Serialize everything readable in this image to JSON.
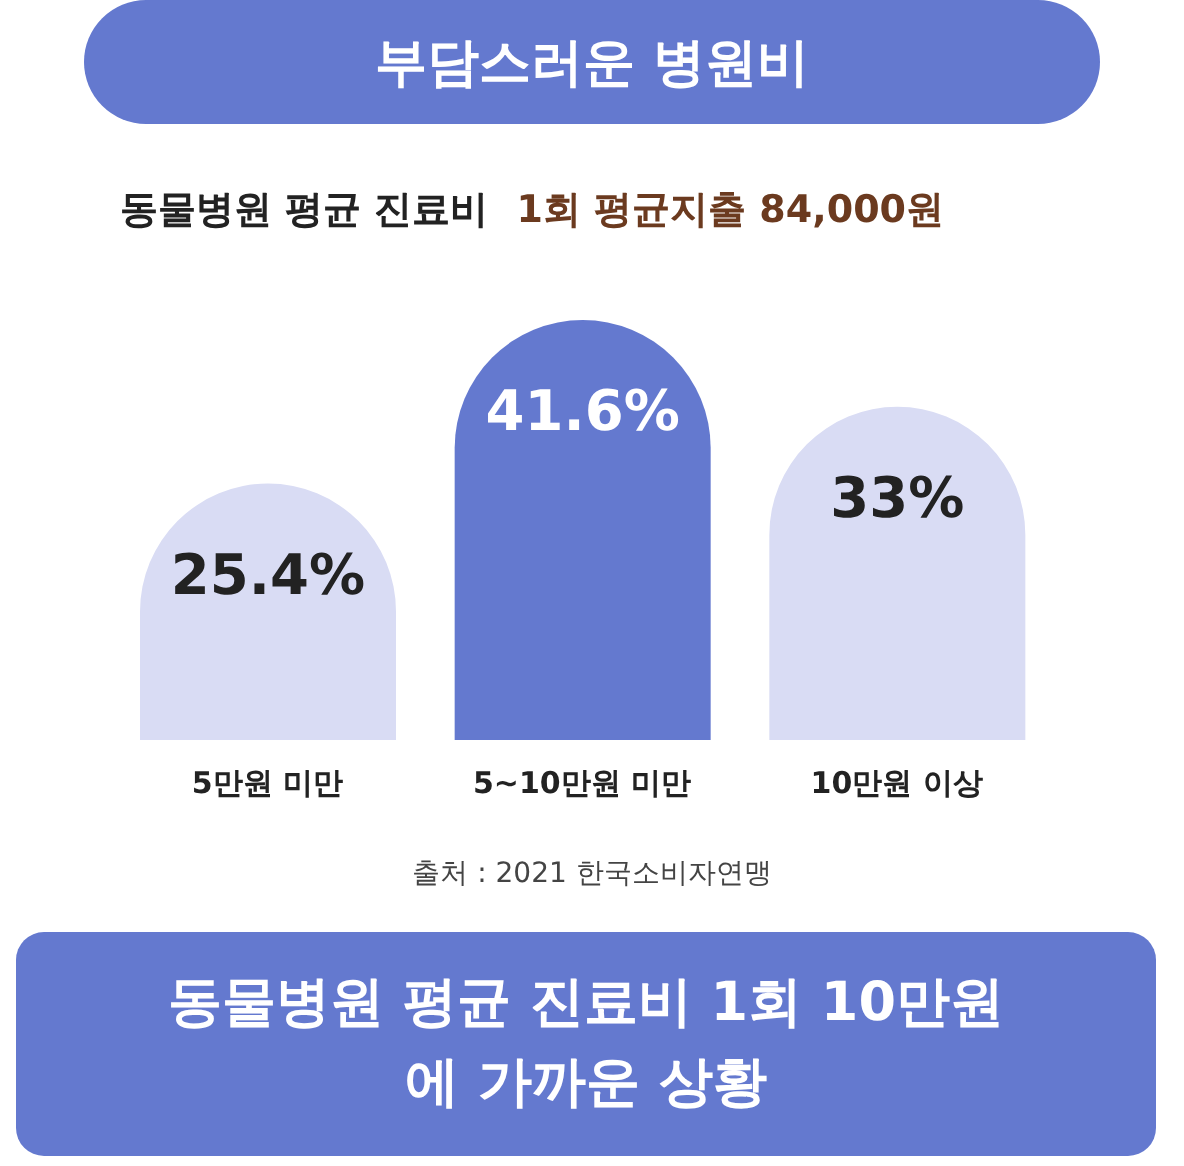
{
  "chart_data": {
    "type": "bar",
    "title": "부담스러운 병원비",
    "subtitle": "동물병원 평균 진료비",
    "categories": [
      "5만원 미만",
      "5~10만원 미만",
      "10만원 이상"
    ],
    "values": [
      25.4,
      41.6,
      33
    ],
    "colors": [
      "#d9dcf4",
      "#6479cf",
      "#d9dcf4"
    ],
    "value_labels": [
      "25.4%",
      "41.6%",
      "33%"
    ],
    "annotations": [
      "1회 평균지출 84,000원",
      "출처 : 2021 한국소비자연맹",
      "동물병원 평균 진료비 1회 10만원에 가까운 상황"
    ]
  }
}
